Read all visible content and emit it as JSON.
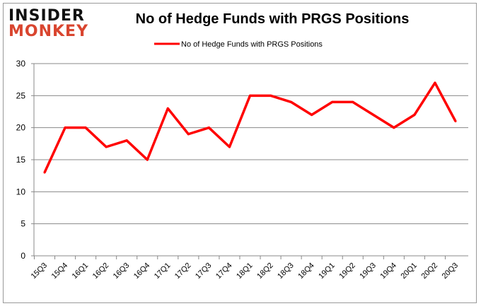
{
  "logo": {
    "line1": "INSIDER",
    "line2": "MONKEY"
  },
  "chart_data": {
    "type": "line",
    "title": "No of Hedge Funds with PRGS Positions",
    "categories": [
      "15Q3",
      "15Q4",
      "16Q1",
      "16Q2",
      "16Q3",
      "16Q4",
      "17Q1",
      "17Q2",
      "17Q3",
      "17Q4",
      "18Q1",
      "18Q2",
      "18Q3",
      "18Q4",
      "19Q1",
      "19Q2",
      "19Q3",
      "19Q4",
      "20Q1",
      "20Q2",
      "20Q3"
    ],
    "series": [
      {
        "name": "No of Hedge Funds with PRGS Positions",
        "color": "#ff0000",
        "values": [
          13,
          20,
          20,
          17,
          18,
          15,
          23,
          19,
          20,
          17,
          25,
          25,
          24,
          22,
          24,
          24,
          22,
          20,
          22,
          27,
          21
        ]
      }
    ],
    "ylim": [
      0,
      30
    ],
    "yticks": [
      0,
      5,
      10,
      15,
      20,
      25,
      30
    ],
    "grid": true,
    "legend": "top"
  }
}
